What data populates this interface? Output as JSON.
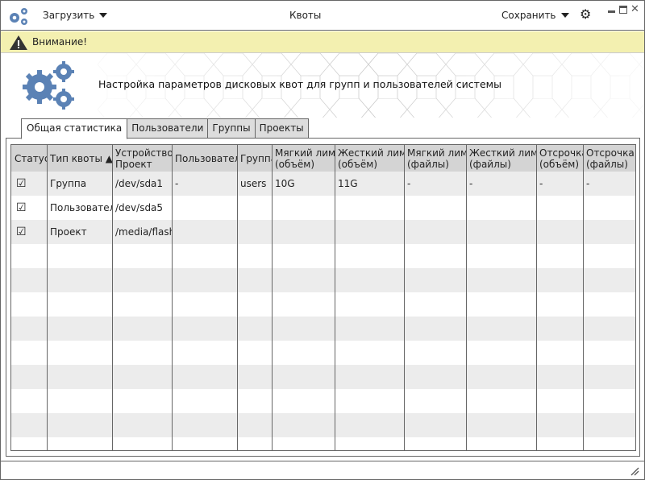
{
  "header": {
    "load_menu": "Загрузить",
    "title": "Квоты",
    "save_menu": "Сохранить"
  },
  "warning": {
    "text": "Внимание!"
  },
  "banner": {
    "text": "Настройка параметров дисковых квот для групп и пользователей системы"
  },
  "tabs": [
    {
      "label": "Общая статистика",
      "active": true
    },
    {
      "label": "Пользователи"
    },
    {
      "label": "Группы"
    },
    {
      "label": "Проекты"
    }
  ],
  "table": {
    "columns": [
      "Статус",
      "Тип квоты ▲",
      "Устройство\nПроект",
      "Пользователь",
      "Группа",
      "Мягкий лимит\n(объём)",
      "Жесткий лимит\n(объём)",
      "Мягкий лимит\n(файлы)",
      "Жесткий лимит\n(файлы)",
      "Отсрочка\n(объём)",
      "Отсрочка\n(файлы)"
    ],
    "sort_column": "Тип квоты",
    "rows": [
      [
        "☑",
        "Группа",
        "/dev/sda1",
        "-",
        "users",
        "10G",
        "11G",
        "-",
        "-",
        "-",
        "-"
      ],
      [
        "☑",
        "Пользователь",
        "/dev/sda5",
        "",
        "",
        "",
        "",
        "",
        "",
        "",
        ""
      ],
      [
        "☑",
        "Проект",
        "/media/flash",
        "",
        "",
        "",
        "",
        "",
        "",
        "",
        ""
      ]
    ]
  },
  "colors": {
    "accent": "#5b82b5",
    "warning_bg": "#f3f0b0",
    "header_bg": "#d4d4d4",
    "row_alt": "#ececec"
  }
}
